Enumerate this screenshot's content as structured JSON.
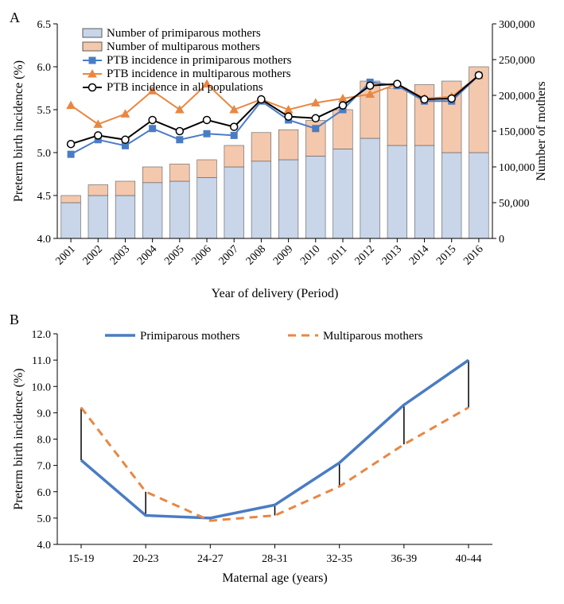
{
  "panelA": {
    "label": "A",
    "type": "combo-bar-line",
    "x_label": "Year of delivery (Period)",
    "y_left_label": "Preterm birth incidence (%)",
    "y_right_label": "Number of mothers",
    "years": [
      "2001",
      "2002",
      "2003",
      "2004",
      "2005",
      "2006",
      "2007",
      "2008",
      "2009",
      "2010",
      "2011",
      "2012",
      "2013",
      "2014",
      "2015",
      "2016"
    ],
    "y_left_min": 4.0,
    "y_left_max": 6.5,
    "y_left_step": 0.5,
    "y_right_min": 0,
    "y_right_max": 300000,
    "y_right_step": 50000,
    "bar_primiparous": [
      50000,
      60000,
      60000,
      78000,
      80000,
      85000,
      100000,
      108000,
      110000,
      115000,
      125000,
      140000,
      130000,
      130000,
      120000,
      120000
    ],
    "bar_multiparous": [
      10000,
      15000,
      20000,
      22000,
      24000,
      25000,
      30000,
      40000,
      42000,
      50000,
      55000,
      80000,
      80000,
      85000,
      100000,
      120000
    ],
    "bar_primi_color": "#c9d5e8",
    "bar_multi_color": "#f4c8ad",
    "bar_border": "#5b5b5b",
    "line_primi": [
      4.98,
      5.15,
      5.08,
      5.28,
      5.15,
      5.22,
      5.2,
      5.6,
      5.38,
      5.28,
      5.5,
      5.82,
      5.78,
      5.6,
      5.6,
      5.9
    ],
    "line_multi": [
      5.55,
      5.33,
      5.45,
      5.72,
      5.5,
      5.8,
      5.5,
      5.62,
      5.5,
      5.58,
      5.63,
      5.68,
      5.8,
      5.63,
      5.65,
      5.9
    ],
    "line_all": [
      5.1,
      5.2,
      5.15,
      5.38,
      5.25,
      5.38,
      5.3,
      5.62,
      5.42,
      5.4,
      5.55,
      5.78,
      5.8,
      5.62,
      5.63,
      5.9
    ],
    "line_primi_color": "#4a7cc4",
    "line_multi_color": "#e98742",
    "line_all_color": "#000000",
    "legend": {
      "bar_primi": "Number of primiparous mothers",
      "bar_multi": "Number of multiparous mothers",
      "line_primi": "PTB incidence in primiparous mothers",
      "line_multi": "PTB incidence in multiparous mothers",
      "line_all": "PTB incidence in all populations"
    }
  },
  "panelB": {
    "label": "B",
    "type": "line",
    "x_label": "Maternal age (years)",
    "y_label": "Preterm birth incidence (%)",
    "categories": [
      "15-19",
      "20-23",
      "24-27",
      "28-31",
      "32-35",
      "36-39",
      "40-44"
    ],
    "y_min": 4.0,
    "y_max": 12.0,
    "y_step": 1.0,
    "series_primi": [
      7.2,
      5.1,
      5.0,
      5.5,
      7.1,
      9.3,
      11.0
    ],
    "series_multi": [
      9.2,
      6.0,
      4.9,
      5.1,
      6.2,
      7.8,
      9.2
    ],
    "primi_color": "#4a7cc4",
    "multi_color": "#e98742",
    "legend": {
      "primi": "Primiparous mothers",
      "multi": "Multiparous mothers"
    },
    "error_bar_color": "#000000"
  }
}
